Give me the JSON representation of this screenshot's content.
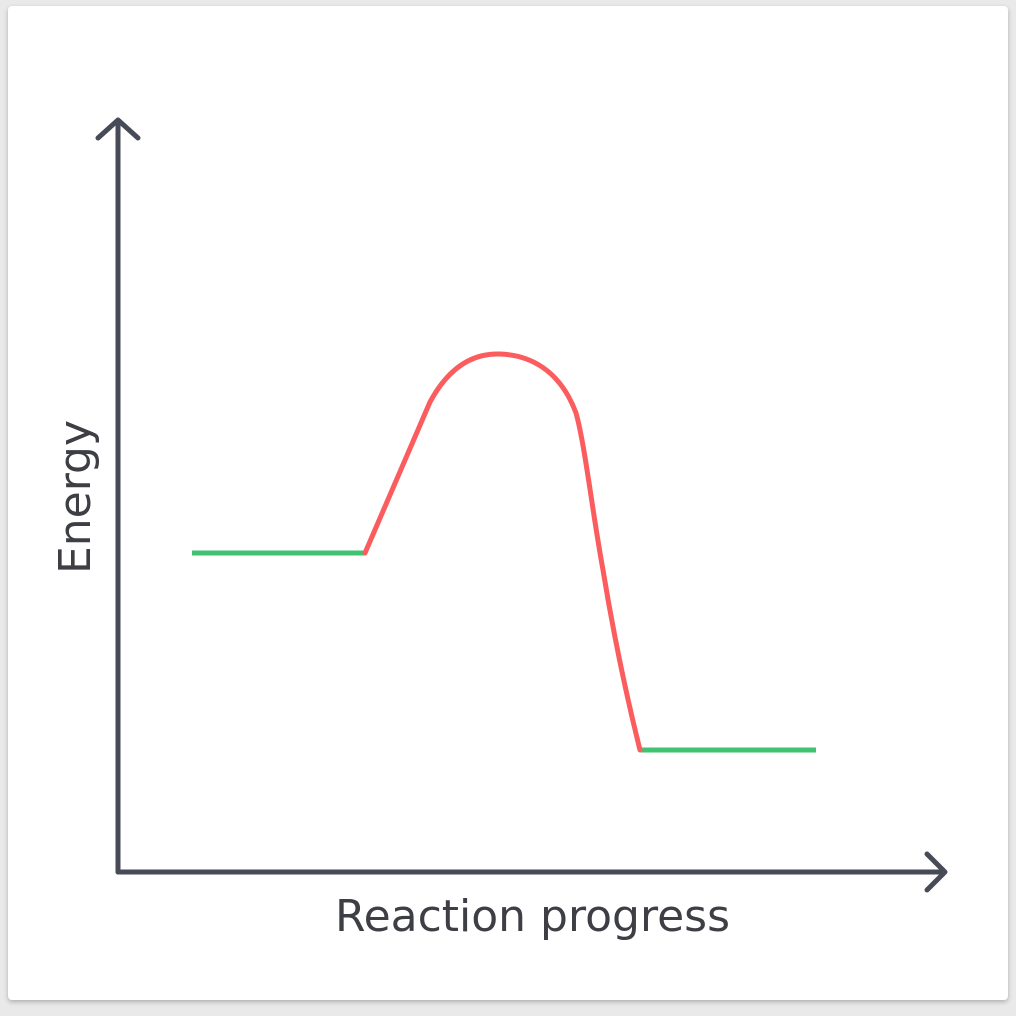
{
  "diagram": {
    "x_axis_label": "Reaction progress",
    "y_axis_label": "Energy",
    "colors": {
      "axis": "#474b57",
      "energy_levels": "#3fc371",
      "reaction_path": "#fb5c5e",
      "text": "#3d3f45",
      "background": "#ffffff"
    }
  }
}
